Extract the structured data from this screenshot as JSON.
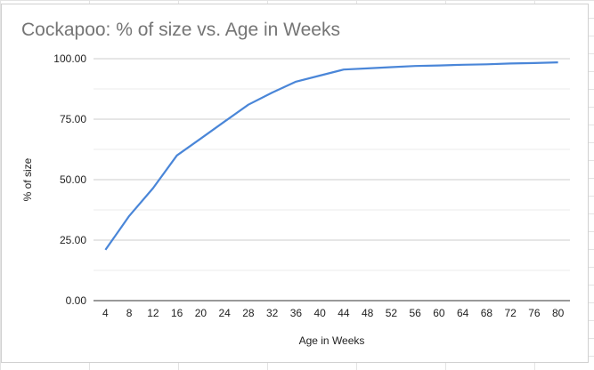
{
  "chart_data": {
    "type": "line",
    "title": "Cockapoo: % of size vs. Age in Weeks",
    "xlabel": "Age in Weeks",
    "ylabel": "% of size",
    "x": [
      4,
      8,
      12,
      16,
      20,
      24,
      28,
      32,
      36,
      40,
      44,
      48,
      52,
      56,
      60,
      64,
      68,
      72,
      76,
      80
    ],
    "x_tick_labels": [
      "4",
      "8",
      "12",
      "16",
      "20",
      "24",
      "28",
      "32",
      "36",
      "40",
      "44",
      "48",
      "52",
      "56",
      "60",
      "64",
      "68",
      "72",
      "76",
      "80"
    ],
    "y_tick_labels": [
      "0.00",
      "25.00",
      "50.00",
      "75.00",
      "100.00"
    ],
    "y_ticks": [
      0,
      25,
      50,
      75,
      100
    ],
    "ylim": [
      0,
      100
    ],
    "grid": true,
    "legend": "none",
    "series": [
      {
        "color": "#4a86d8",
        "values": [
          21,
          35,
          46.5,
          60,
          67,
          74,
          81,
          86,
          90.5,
          93,
          95.5,
          96,
          96.5,
          97,
          97.2,
          97.5,
          97.7,
          98,
          98.2,
          98.5
        ]
      }
    ]
  }
}
